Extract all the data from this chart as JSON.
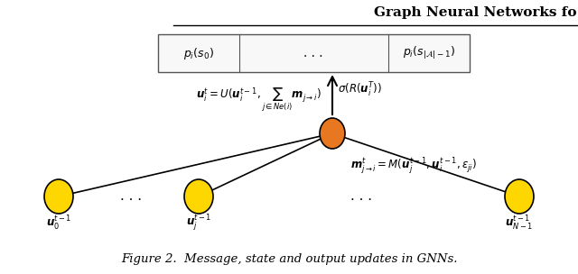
{
  "title": "Graph Neural Networks fo",
  "caption": "Figure 2.  Message, state and output updates in GNNs.",
  "bg_color": "#ffffff",
  "node_color_orange": "#E87722",
  "node_color_yellow": "#FFD700",
  "box_bg": "#f0f0f0",
  "box_border": "#888888"
}
